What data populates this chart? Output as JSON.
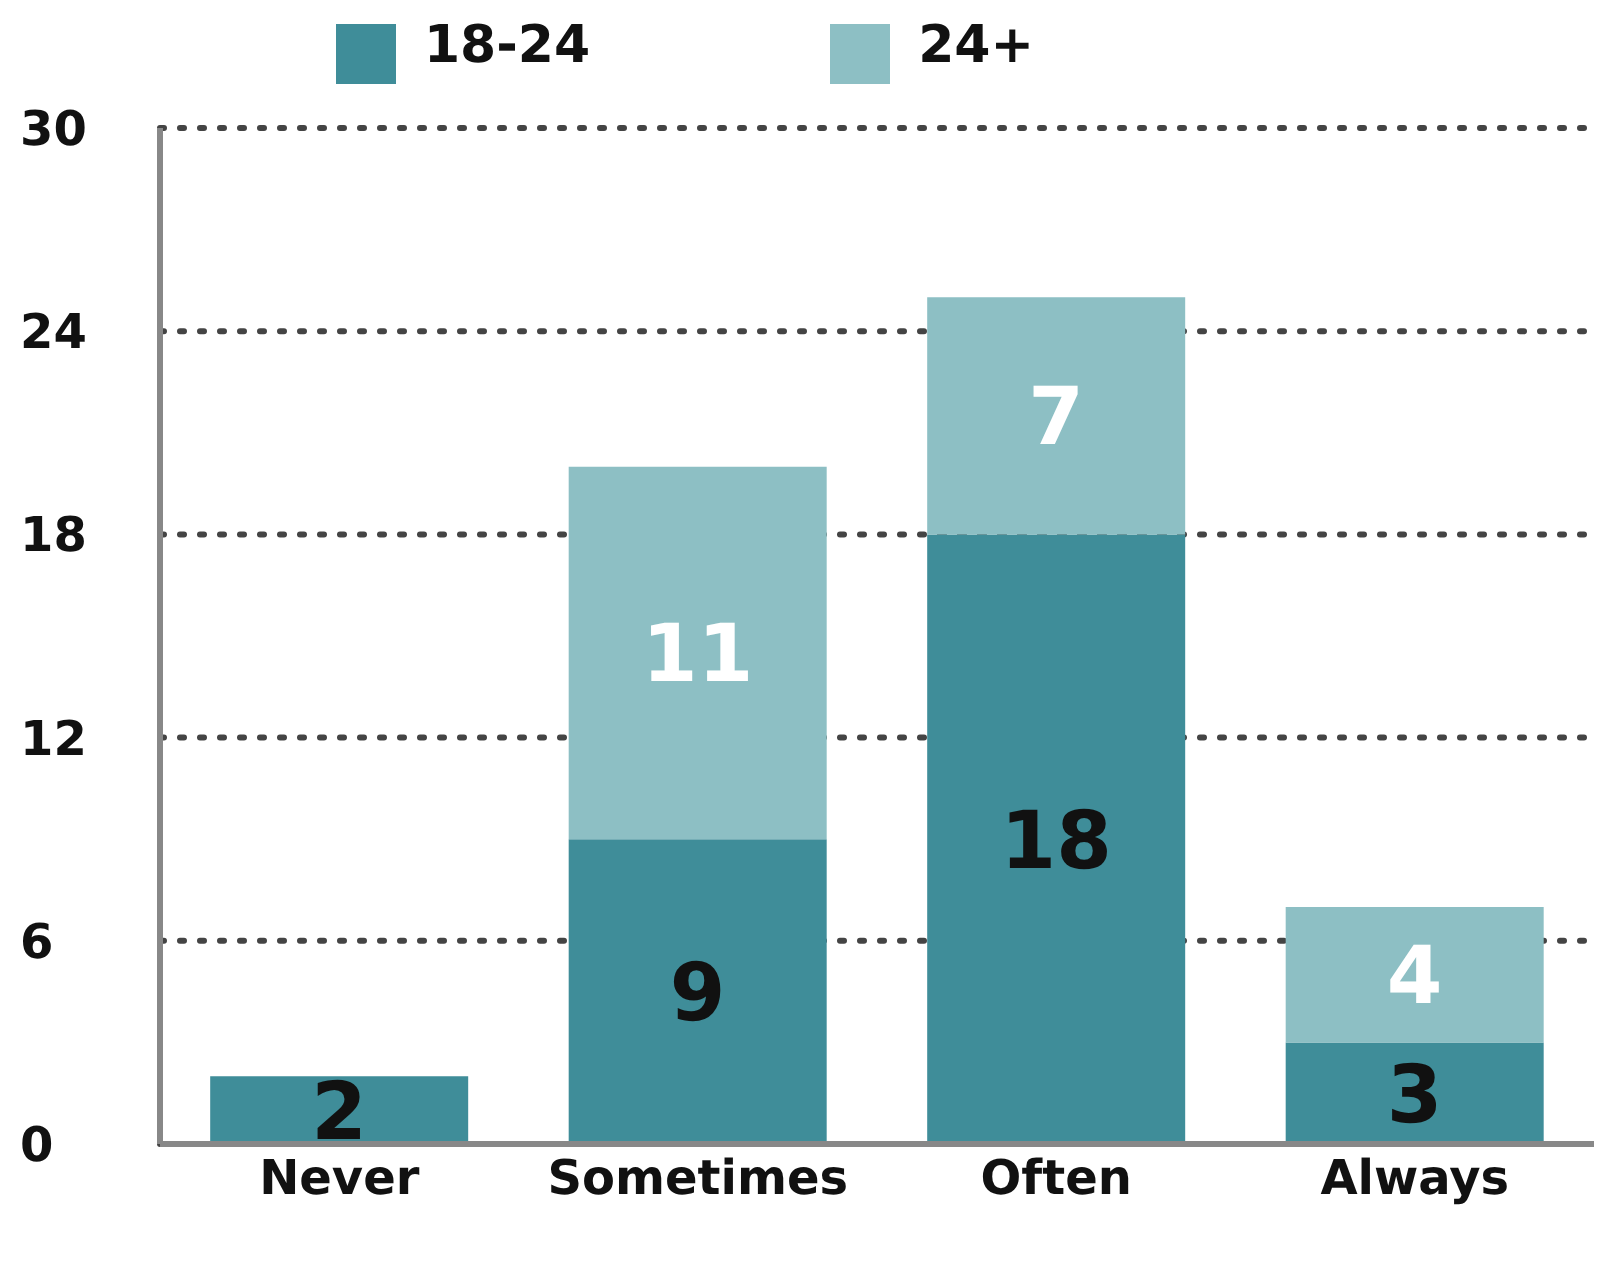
{
  "chart_data": {
    "type": "bar",
    "stacked": true,
    "categories": [
      "Never",
      "Sometimes",
      "Often",
      "Always"
    ],
    "series": [
      {
        "name": "18-24",
        "color": "#3f8d99",
        "values": [
          2,
          9,
          18,
          3
        ]
      },
      {
        "name": "24+",
        "color": "#8dbfc4",
        "values": [
          null,
          11,
          7,
          4
        ]
      }
    ],
    "ylim": [
      0,
      30
    ],
    "yticks": [
      0,
      6,
      12,
      18,
      24,
      30
    ],
    "grid": "y",
    "legend": "top",
    "data_labels": true
  }
}
